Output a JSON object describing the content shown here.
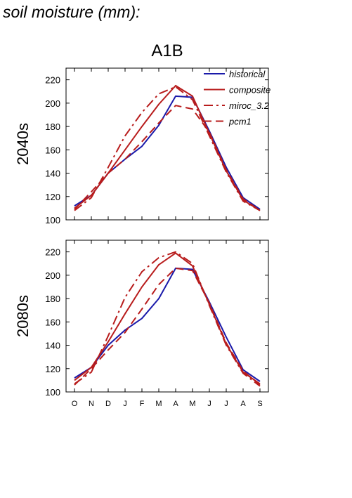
{
  "page_title": "soil moisture (mm):",
  "scenario": "A1B",
  "colors": {
    "historical": "#1a1aaa",
    "model": "#b81c1c",
    "axis": "#000000"
  },
  "chart_data": [
    {
      "type": "line",
      "panel_label": "2040s",
      "categories": [
        "O",
        "N",
        "D",
        "J",
        "F",
        "M",
        "A",
        "M",
        "J",
        "J",
        "A",
        "S"
      ],
      "ylim": [
        100,
        230
      ],
      "yticks": [
        100,
        120,
        140,
        160,
        180,
        200,
        220
      ],
      "legend_position": "top-right",
      "series": [
        {
          "name": "historical",
          "style": "solid",
          "color": "#1a1aaa",
          "values": [
            112,
            121,
            140,
            152,
            163,
            181,
            206,
            205,
            176,
            145,
            119,
            109
          ]
        },
        {
          "name": "composite",
          "style": "solid",
          "color": "#b81c1c",
          "values": [
            110,
            121,
            140,
            160,
            180,
            199,
            215,
            206,
            174,
            142,
            117,
            108
          ]
        },
        {
          "name": "miroc_3.2",
          "style": "dashdot",
          "color": "#b81c1c",
          "values": [
            108,
            119,
            145,
            172,
            192,
            208,
            214,
            203,
            172,
            141,
            116,
            108
          ]
        },
        {
          "name": "pcm1",
          "style": "dashed",
          "color": "#b81c1c",
          "values": [
            109,
            124,
            140,
            152,
            167,
            183,
            198,
            195,
            175,
            143,
            118,
            108
          ]
        }
      ]
    },
    {
      "type": "line",
      "panel_label": "2080s",
      "categories": [
        "O",
        "N",
        "D",
        "J",
        "F",
        "M",
        "A",
        "M",
        "J",
        "J",
        "A",
        "S"
      ],
      "ylim": [
        100,
        230
      ],
      "yticks": [
        100,
        120,
        140,
        160,
        180,
        200,
        220
      ],
      "series": [
        {
          "name": "historical",
          "style": "solid",
          "color": "#1a1aaa",
          "values": [
            112,
            121,
            140,
            153,
            163,
            180,
            206,
            205,
            177,
            147,
            119,
            109
          ]
        },
        {
          "name": "composite",
          "style": "solid",
          "color": "#b81c1c",
          "values": [
            110,
            121,
            143,
            167,
            190,
            209,
            219,
            208,
            175,
            141,
            117,
            107
          ]
        },
        {
          "name": "miroc_3.2",
          "style": "dashdot",
          "color": "#b81c1c",
          "values": [
            107,
            117,
            148,
            181,
            203,
            215,
            220,
            210,
            174,
            140,
            116,
            105
          ]
        },
        {
          "name": "pcm1",
          "style": "dashed",
          "color": "#b81c1c",
          "values": [
            106,
            120,
            136,
            151,
            171,
            192,
            206,
            204,
            176,
            142,
            118,
            106
          ]
        }
      ]
    }
  ]
}
